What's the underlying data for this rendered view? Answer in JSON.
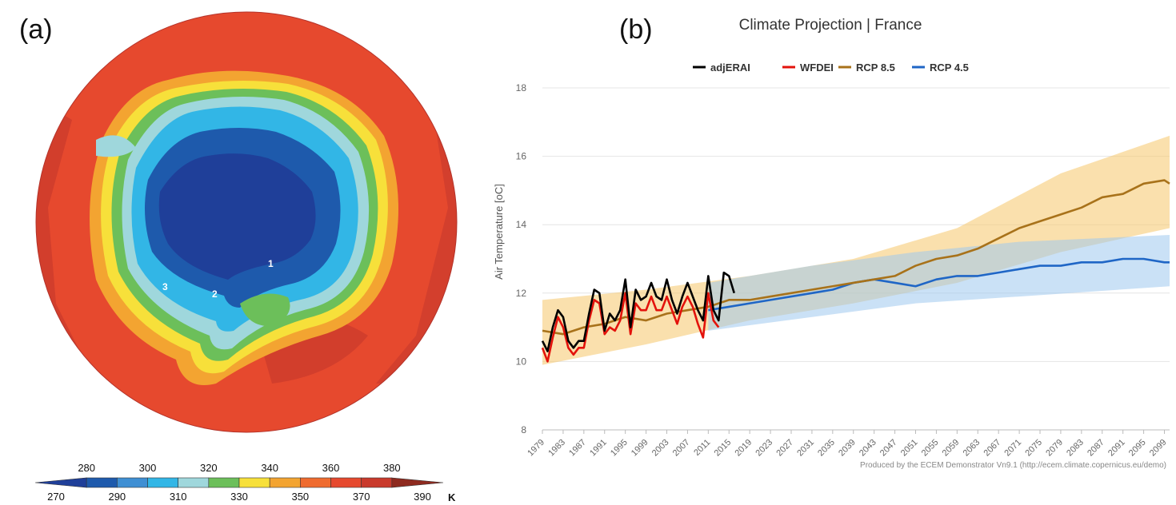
{
  "panels": {
    "a_label": "(a)",
    "b_label": "(b)"
  },
  "map": {
    "region_labels": [
      "1",
      "2",
      "3"
    ],
    "colorbar": {
      "unit": "K",
      "levels": [
        270,
        280,
        290,
        300,
        310,
        320,
        330,
        340,
        350,
        360,
        370,
        380,
        390
      ],
      "upper_labels": [
        "280",
        "300",
        "320",
        "340",
        "360",
        "380"
      ],
      "lower_labels": [
        "270",
        "290",
        "310",
        "330",
        "350",
        "370",
        "390"
      ],
      "colors": [
        "#1f3f99",
        "#1e5aac",
        "#3f8fd3",
        "#32b6e6",
        "#9fd7dc",
        "#6cbf5a",
        "#f7e03a",
        "#f3a431",
        "#ef6b2f",
        "#e6492e",
        "#c93a2c",
        "#8e2a1f"
      ]
    }
  },
  "chart_data": {
    "type": "line",
    "title": "Climate Projection | France",
    "ylabel": "Air Temperature [oC]",
    "xlabel": "",
    "ylim": [
      8,
      18
    ],
    "xlim": [
      1979,
      2100
    ],
    "y_ticks": [
      "8",
      "10",
      "12",
      "14",
      "16",
      "18"
    ],
    "x_ticks": [
      "1979",
      "1983",
      "1987",
      "1991",
      "1995",
      "1999",
      "2003",
      "2007",
      "2011",
      "2015",
      "2019",
      "2023",
      "2027",
      "2031",
      "2035",
      "2039",
      "2043",
      "2047",
      "2051",
      "2055",
      "2059",
      "2063",
      "2067",
      "2071",
      "2075",
      "2079",
      "2083",
      "2087",
      "2091",
      "2095",
      "2099"
    ],
    "legend_position": "top",
    "grid": true,
    "credit": "Produced by the ECEM Demonstrator Vn9.1 (http://ecem.climate.copernicus.eu/demo)",
    "series": [
      {
        "name": "adjERAI",
        "color": "#000000",
        "x": [
          1979,
          1980,
          1981,
          1982,
          1983,
          1984,
          1985,
          1986,
          1987,
          1988,
          1989,
          1990,
          1991,
          1992,
          1993,
          1994,
          1995,
          1996,
          1997,
          1998,
          1999,
          2000,
          2001,
          2002,
          2003,
          2004,
          2005,
          2006,
          2007,
          2008,
          2009,
          2010,
          2011,
          2012,
          2013,
          2014,
          2015,
          2016
        ],
        "values": [
          10.6,
          10.3,
          11.0,
          11.5,
          11.3,
          10.6,
          10.4,
          10.6,
          10.6,
          11.4,
          12.1,
          12.0,
          10.9,
          11.4,
          11.2,
          11.5,
          12.4,
          11.0,
          12.1,
          11.8,
          11.9,
          12.3,
          11.9,
          11.8,
          12.4,
          11.8,
          11.4,
          11.9,
          12.3,
          11.9,
          11.5,
          11.2,
          12.5,
          11.5,
          11.2,
          12.6,
          12.5,
          12.0
        ]
      },
      {
        "name": "WFDEI",
        "color": "#e3120b",
        "x": [
          1979,
          1980,
          1981,
          1982,
          1983,
          1984,
          1985,
          1986,
          1987,
          1988,
          1989,
          1990,
          1991,
          1992,
          1993,
          1994,
          1995,
          1996,
          1997,
          1998,
          1999,
          2000,
          2001,
          2002,
          2003,
          2004,
          2005,
          2006,
          2007,
          2008,
          2009,
          2010,
          2011,
          2012,
          2013
        ],
        "values": [
          10.4,
          10.0,
          10.7,
          11.3,
          11.0,
          10.4,
          10.2,
          10.4,
          10.4,
          11.2,
          11.8,
          11.7,
          10.8,
          11.0,
          10.9,
          11.2,
          12.0,
          10.8,
          11.7,
          11.5,
          11.5,
          11.9,
          11.5,
          11.5,
          11.9,
          11.5,
          11.1,
          11.6,
          11.9,
          11.6,
          11.1,
          10.7,
          12.0,
          11.2,
          11.0
        ]
      },
      {
        "name": "RCP 8.5",
        "color": "#a8721a",
        "x": [
          1979,
          1983,
          1987,
          1991,
          1995,
          1999,
          2003,
          2007,
          2011,
          2015,
          2019,
          2023,
          2027,
          2031,
          2035,
          2039,
          2043,
          2047,
          2051,
          2055,
          2059,
          2063,
          2067,
          2071,
          2075,
          2079,
          2083,
          2087,
          2091,
          2095,
          2099,
          2100
        ],
        "values": [
          10.9,
          10.8,
          11.0,
          11.1,
          11.3,
          11.2,
          11.4,
          11.5,
          11.6,
          11.8,
          11.8,
          11.9,
          12.0,
          12.1,
          12.2,
          12.3,
          12.4,
          12.5,
          12.8,
          13.0,
          13.1,
          13.3,
          13.6,
          13.9,
          14.1,
          14.3,
          14.5,
          14.8,
          14.9,
          15.2,
          15.3,
          15.2
        ]
      },
      {
        "name": "RCP 4.5",
        "color": "#1f66c6",
        "x": [
          2011,
          2015,
          2019,
          2023,
          2027,
          2031,
          2035,
          2039,
          2043,
          2047,
          2051,
          2055,
          2059,
          2063,
          2067,
          2071,
          2075,
          2079,
          2083,
          2087,
          2091,
          2095,
          2099,
          2100
        ],
        "values": [
          11.5,
          11.6,
          11.7,
          11.8,
          11.9,
          12.0,
          12.1,
          12.3,
          12.4,
          12.3,
          12.2,
          12.4,
          12.5,
          12.5,
          12.6,
          12.7,
          12.8,
          12.8,
          12.9,
          12.9,
          13.0,
          13.0,
          12.9,
          12.9
        ]
      }
    ],
    "bands": [
      {
        "series": "RCP 8.5",
        "color": "#f5c76a",
        "x": [
          1979,
          1999,
          2019,
          2039,
          2059,
          2079,
          2100
        ],
        "lower": [
          9.9,
          10.5,
          11.2,
          11.7,
          12.3,
          13.2,
          13.9
        ],
        "upper": [
          11.8,
          12.1,
          12.5,
          13.0,
          13.9,
          15.5,
          16.6
        ]
      },
      {
        "series": "RCP 4.5",
        "color": "#9ec9ef",
        "x": [
          2011,
          2031,
          2051,
          2071,
          2100
        ],
        "lower": [
          10.9,
          11.3,
          11.7,
          11.9,
          12.2
        ],
        "upper": [
          12.3,
          12.8,
          13.2,
          13.5,
          13.7
        ]
      }
    ]
  }
}
